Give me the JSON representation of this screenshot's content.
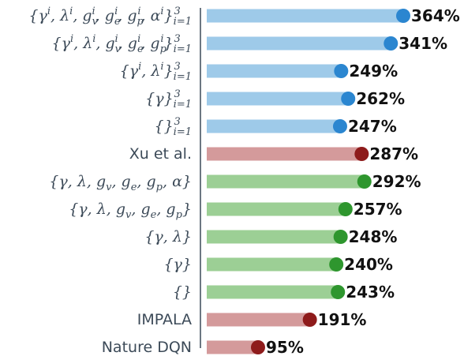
{
  "chart_data": {
    "type": "bar",
    "orientation": "horizontal",
    "title": "",
    "xlabel": "",
    "ylabel": "",
    "xlim": [
      0,
      380
    ],
    "grid": false,
    "legend": "none",
    "value_suffix": "%",
    "categories": [
      "{γ^i, λ^i, g_v^i, g_e^i, g_p^i, α^i}_{i=1}^3",
      "{γ^i, λ^i, g_v^i, g_e^i, g_p^i}_{i=1}^3",
      "{γ^i, λ^i}_{i=1}^3",
      "{γ}_{i=1}^3",
      "{}_{i=1}^3",
      "Xu et al.",
      "{γ, λ, g_v, g_e, g_p, α}",
      "{γ, λ, g_v, g_e, g_p}",
      "{γ, λ}",
      "{γ}",
      "{}",
      "IMPALA",
      "Nature DQN"
    ],
    "values": [
      364,
      341,
      249,
      262,
      247,
      287,
      292,
      257,
      248,
      240,
      243,
      191,
      95
    ],
    "value_labels": [
      "364%",
      "341%",
      "249%",
      "262%",
      "247%",
      "287%",
      "292%",
      "257%",
      "248%",
      "240%",
      "243%",
      "191%",
      "95%"
    ],
    "groups": [
      "blue",
      "blue",
      "blue",
      "blue",
      "blue",
      "red",
      "green",
      "green",
      "green",
      "green",
      "green",
      "red",
      "red"
    ],
    "colors": {
      "blue": {
        "bar": "#9ecae9",
        "dot": "#2b86d0"
      },
      "red": {
        "bar": "#d49a9b",
        "dot": "#8e1b1b"
      },
      "green": {
        "bar": "#9ccf95",
        "dot": "#2e962e"
      },
      "axis": "#3c4a58"
    }
  }
}
